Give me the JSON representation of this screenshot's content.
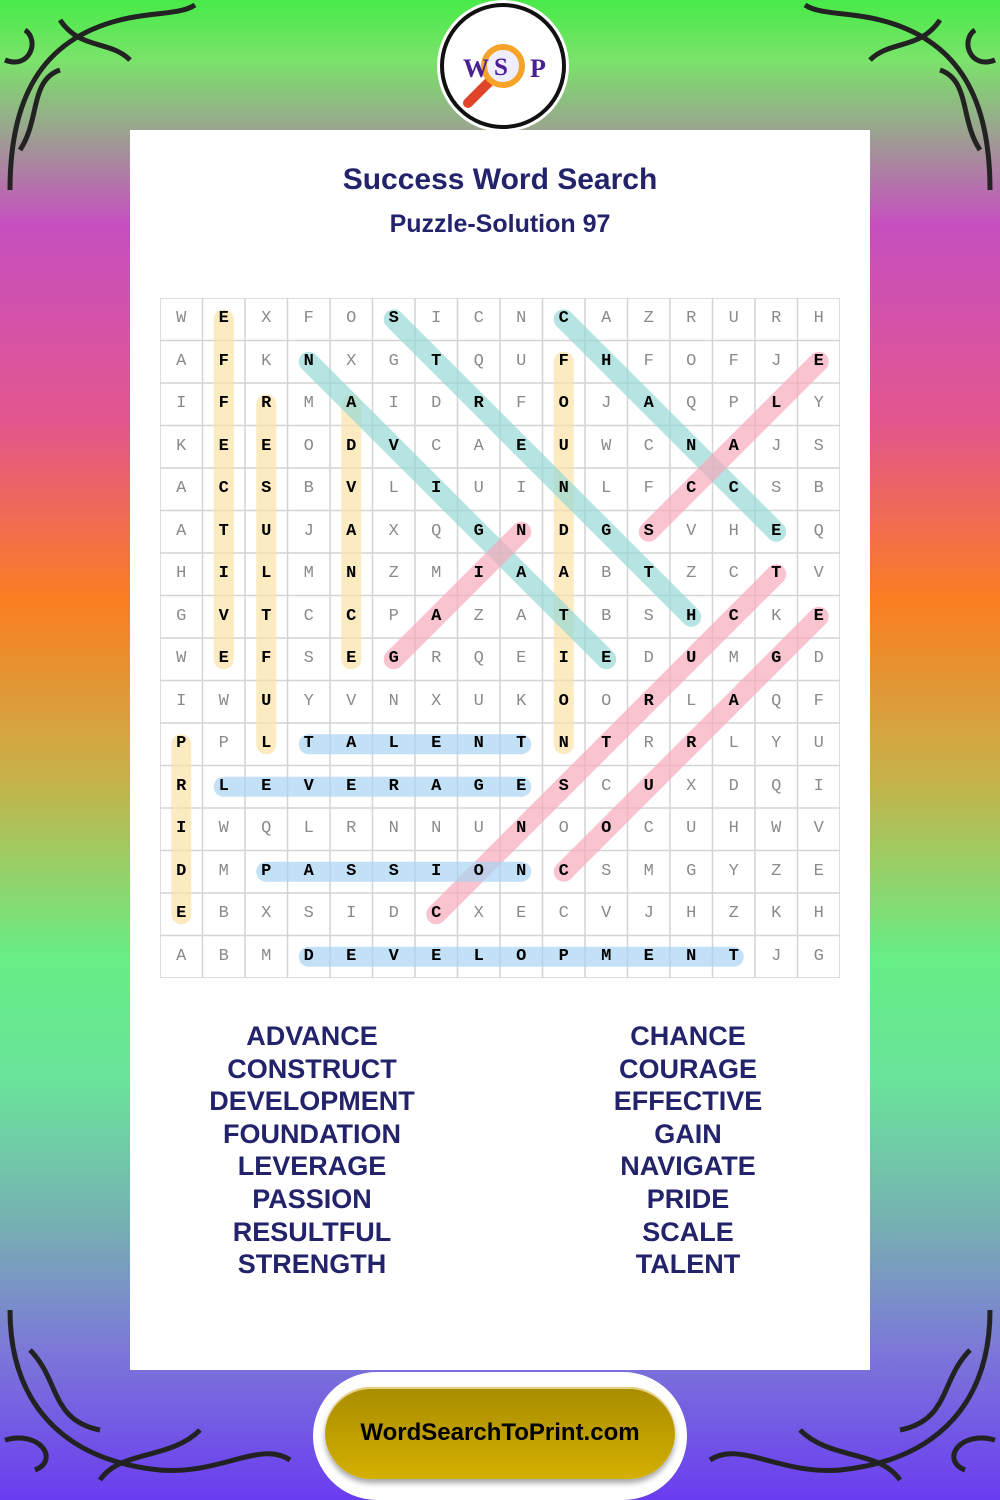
{
  "logo": {
    "letters": [
      "W",
      "S",
      "P"
    ]
  },
  "header": {
    "title": "Success Word Search",
    "subtitle": "Puzzle-Solution 97"
  },
  "grid": {
    "rows": [
      "WEXFOSICNCAZRURH",
      "AFKNXGTQUFHFOFJE",
      "IFRMAIDRFOJAQPLY",
      "KEEODVCAEUWCNAJS",
      "ACSBVLIUINLFCCSB",
      "ATUJAXQGNDGSVHEQ",
      "HILMNZMIAABTZCTV",
      "GVTCCPAZATBSHCKE",
      "WEFSEGRQEIEDUMGD",
      "IWUYVNXUKOORLAQF",
      "PPLTALENTNTRRLYU",
      "RLEVERAGESCUXDQI",
      "IWQLRNNUNOOCUHWV",
      "DMPASSIONCSMGYZE",
      "EBXSIDCXECVJHZKH",
      "ABMDEVELOPMENTJG"
    ],
    "solutions": [
      {
        "word": "EFFECTIVE",
        "start": [
          0,
          1
        ],
        "end": [
          8,
          1
        ],
        "color": "yellow"
      },
      {
        "word": "RESULTFUL",
        "start": [
          2,
          2
        ],
        "end": [
          10,
          2
        ],
        "color": "yellow"
      },
      {
        "word": "ADVANCE",
        "start": [
          2,
          4
        ],
        "end": [
          8,
          4
        ],
        "color": "yellow"
      },
      {
        "word": "FOUNDATION",
        "start": [
          1,
          9
        ],
        "end": [
          10,
          9
        ],
        "color": "yellow"
      },
      {
        "word": "PRIDE",
        "start": [
          10,
          0
        ],
        "end": [
          14,
          0
        ],
        "color": "yellow"
      },
      {
        "word": "STRENGTH",
        "start": [
          0,
          5
        ],
        "end": [
          7,
          12
        ],
        "color": "teal"
      },
      {
        "word": "NAVIGATE",
        "start": [
          1,
          3
        ],
        "end": [
          8,
          10
        ],
        "color": "teal"
      },
      {
        "word": "CHANCE",
        "start": [
          0,
          9
        ],
        "end": [
          5,
          14
        ],
        "color": "teal"
      },
      {
        "word": "SCALE",
        "start": [
          5,
          11
        ],
        "end": [
          1,
          15
        ],
        "color": "pink"
      },
      {
        "word": "GAIN",
        "start": [
          8,
          5
        ],
        "end": [
          5,
          8
        ],
        "color": "pink"
      },
      {
        "word": "CONSTRUCT",
        "start": [
          14,
          6
        ],
        "end": [
          6,
          14
        ],
        "color": "pink"
      },
      {
        "word": "COURAGE",
        "start": [
          13,
          9
        ],
        "end": [
          7,
          15
        ],
        "color": "pink"
      },
      {
        "word": "TALENT",
        "start": [
          10,
          3
        ],
        "end": [
          10,
          8
        ],
        "color": "blue"
      },
      {
        "word": "LEVERAGE",
        "start": [
          11,
          1
        ],
        "end": [
          11,
          8
        ],
        "color": "blue"
      },
      {
        "word": "PASSION",
        "start": [
          13,
          2
        ],
        "end": [
          13,
          8
        ],
        "color": "blue"
      },
      {
        "word": "DEVELOPMENT",
        "start": [
          15,
          3
        ],
        "end": [
          15,
          13
        ],
        "color": "blue"
      }
    ],
    "colors": {
      "yellow": "#fbe2a8",
      "teal": "#98d9d6",
      "pink": "#f7aabd",
      "blue": "#a9d4f3"
    }
  },
  "word_list": {
    "left": [
      "ADVANCE",
      "CONSTRUCT",
      "DEVELOPMENT",
      "FOUNDATION",
      "LEVERAGE",
      "PASSION",
      "RESULTFUL",
      "STRENGTH"
    ],
    "right": [
      "CHANCE",
      "COURAGE",
      "EFFECTIVE",
      "GAIN",
      "NAVIGATE",
      "PRIDE",
      "SCALE",
      "TALENT"
    ]
  },
  "footer": {
    "site": "WordSearchToPrint.com"
  },
  "theme": {
    "title_color": "#23236b",
    "button_color": "#c4a200"
  }
}
